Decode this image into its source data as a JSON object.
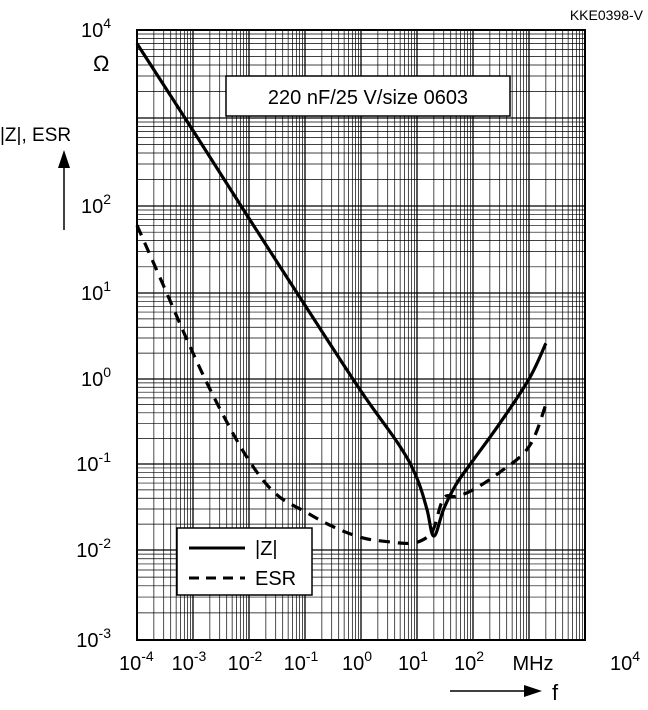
{
  "chart_data": {
    "type": "line",
    "code": "KKE0398-V",
    "annotation": "220 nF/25 V/size 0603",
    "x_scale": "log",
    "y_scale": "log",
    "xlim": [
      0.0001,
      10000
    ],
    "ylim": [
      0.001,
      10000
    ],
    "x_unit": "MHz",
    "x_symbol": "f",
    "y_label": "|Z|, ESR",
    "y_unit": "Ω",
    "grid": true,
    "legend_position": "bottom-left",
    "x_ticks": [
      {
        "base": "10",
        "exp": "-4"
      },
      {
        "base": "10",
        "exp": "-3"
      },
      {
        "base": "10",
        "exp": "-2"
      },
      {
        "base": "10",
        "exp": "-1"
      },
      {
        "base": "10",
        "exp": "0"
      },
      {
        "base": "10",
        "exp": "1"
      },
      {
        "base": "10",
        "exp": "2"
      },
      {
        "base": "MHz",
        "exp": ""
      },
      {
        "base": "10",
        "exp": "4"
      }
    ],
    "y_ticks": [
      {
        "base": "10",
        "exp": "4"
      },
      {
        "base": "10",
        "exp": "2"
      },
      {
        "base": "10",
        "exp": "1"
      },
      {
        "base": "10",
        "exp": "0"
      },
      {
        "base": "10",
        "exp": "-1"
      },
      {
        "base": "10",
        "exp": "-2"
      },
      {
        "base": "10",
        "exp": "-3"
      }
    ],
    "series": [
      {
        "name": "|Z|",
        "style": "solid",
        "x": [
          0.0001,
          0.001,
          0.01,
          0.1,
          1,
          5,
          10,
          15,
          20,
          30,
          50,
          100,
          300,
          1000,
          2000
        ],
        "y": [
          7000,
          720,
          72,
          7.2,
          0.72,
          0.16,
          0.068,
          0.03,
          0.0145,
          0.03,
          0.058,
          0.11,
          0.3,
          1.0,
          2.6
        ]
      },
      {
        "name": "ESR",
        "style": "dashed",
        "x": [
          0.0001,
          0.0003,
          0.001,
          0.003,
          0.01,
          0.03,
          0.1,
          0.3,
          1,
          3,
          8,
          15,
          20,
          30,
          50,
          100,
          300,
          1000,
          2000
        ],
        "y": [
          60,
          12,
          2.0,
          0.45,
          0.11,
          0.045,
          0.028,
          0.019,
          0.014,
          0.0125,
          0.012,
          0.014,
          0.018,
          0.04,
          0.042,
          0.05,
          0.08,
          0.16,
          0.5
        ]
      }
    ]
  }
}
